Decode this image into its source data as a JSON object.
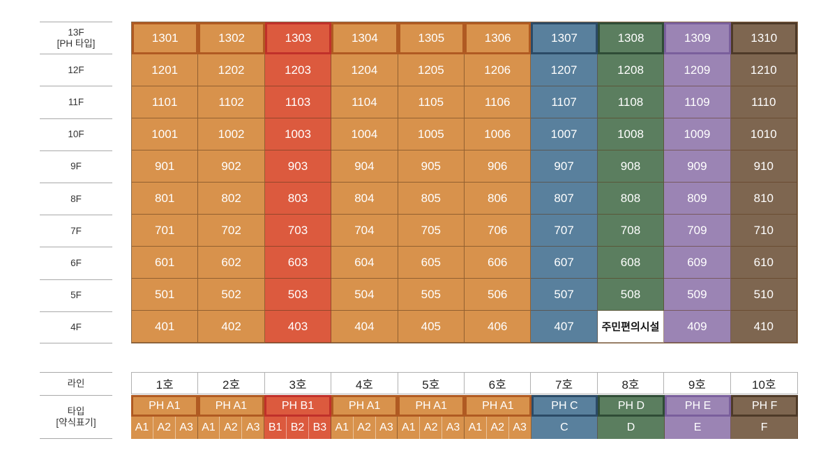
{
  "colors": {
    "orange": "#d8924c",
    "orange_border": "#b05a22",
    "red": "#dc5a3e",
    "red_border": "#c0302a",
    "blue": "#59809d",
    "blue_border": "#2b4a66",
    "green": "#5b7e5f",
    "green_border": "#2f4c36",
    "purple": "#9b84b4",
    "purple_border": "#7a5f9c",
    "brown": "#7e6650",
    "brown_border": "#4e3a28"
  },
  "floors": [
    {
      "label_lines": [
        "13F",
        "[PH 타입]"
      ],
      "units": [
        "1301",
        "1302",
        "1303",
        "1304",
        "1305",
        "1306",
        "1307",
        "1308",
        "1309",
        "1310"
      ],
      "penthouse": true
    },
    {
      "label_lines": [
        "12F"
      ],
      "units": [
        "1201",
        "1202",
        "1203",
        "1204",
        "1205",
        "1206",
        "1207",
        "1208",
        "1209",
        "1210"
      ]
    },
    {
      "label_lines": [
        "11F"
      ],
      "units": [
        "1101",
        "1102",
        "1103",
        "1104",
        "1105",
        "1106",
        "1107",
        "1108",
        "1109",
        "1110"
      ]
    },
    {
      "label_lines": [
        "10F"
      ],
      "units": [
        "1001",
        "1002",
        "1003",
        "1004",
        "1005",
        "1006",
        "1007",
        "1008",
        "1009",
        "1010"
      ]
    },
    {
      "label_lines": [
        "9F"
      ],
      "units": [
        "901",
        "902",
        "903",
        "904",
        "905",
        "906",
        "907",
        "908",
        "909",
        "910"
      ]
    },
    {
      "label_lines": [
        "8F"
      ],
      "units": [
        "801",
        "802",
        "803",
        "804",
        "805",
        "806",
        "807",
        "808",
        "809",
        "810"
      ]
    },
    {
      "label_lines": [
        "7F"
      ],
      "units": [
        "701",
        "702",
        "703",
        "704",
        "705",
        "706",
        "707",
        "708",
        "709",
        "710"
      ]
    },
    {
      "label_lines": [
        "6F"
      ],
      "units": [
        "601",
        "602",
        "603",
        "604",
        "605",
        "606",
        "607",
        "608",
        "609",
        "610"
      ]
    },
    {
      "label_lines": [
        "5F"
      ],
      "units": [
        "501",
        "502",
        "503",
        "504",
        "505",
        "506",
        "507",
        "508",
        "509",
        "510"
      ]
    },
    {
      "label_lines": [
        "4F"
      ],
      "units": [
        "401",
        "402",
        "403",
        "404",
        "405",
        "406",
        "407",
        "주민편의시설",
        "409",
        "410"
      ],
      "facility_index": 7
    }
  ],
  "column_colors": [
    "orange",
    "orange",
    "red",
    "orange",
    "orange",
    "orange",
    "blue",
    "green",
    "purple",
    "brown"
  ],
  "line_label": "라인",
  "lines": [
    "1호",
    "2호",
    "3호",
    "4호",
    "5호",
    "6호",
    "7호",
    "8호",
    "9호",
    "10호"
  ],
  "type_label_lines": [
    "타입",
    "[약식표기]"
  ],
  "ph_types": [
    "PH A1",
    "PH A1",
    "PH B1",
    "PH A1",
    "PH A1",
    "PH A1",
    "PH C",
    "PH D",
    "PH E",
    "PH F"
  ],
  "abbreviations": [
    [
      "A1",
      "A2",
      "A3"
    ],
    [
      "A1",
      "A2",
      "A3"
    ],
    [
      "B1",
      "B2",
      "B3"
    ],
    [
      "A1",
      "A2",
      "A3"
    ],
    [
      "A1",
      "A2",
      "A3"
    ],
    [
      "A1",
      "A2",
      "A3"
    ],
    [
      "C"
    ],
    [
      "D"
    ],
    [
      "E"
    ],
    [
      "F"
    ]
  ]
}
